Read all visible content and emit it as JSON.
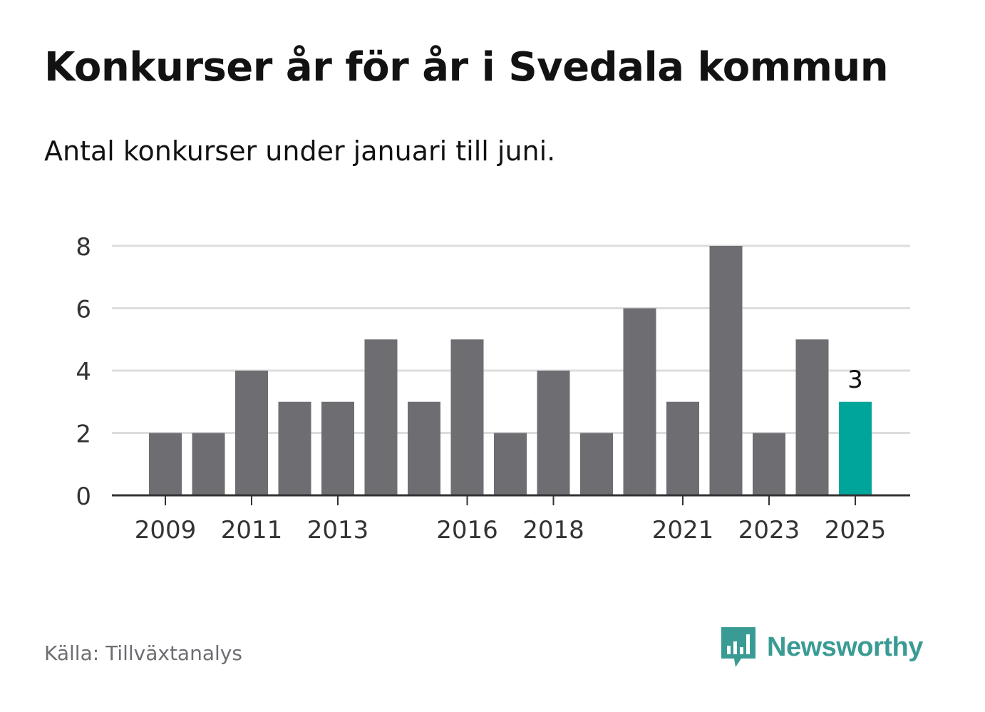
{
  "title": "Konkurser år för år i Svedala kommun",
  "subtitle": "Antal konkurser under januari till juni.",
  "source": "Källa: Tillväxtanalys",
  "logo": {
    "text": "Newsworthy",
    "icon": "newsworthy-bar-chart-icon"
  },
  "colors": {
    "bar": "#6e6d72",
    "highlight": "#00a59a",
    "grid": "#dddddd",
    "axis": "#333333",
    "text": "#333333",
    "brand": "#3a9b94"
  },
  "chart_data": {
    "type": "bar",
    "title": "Konkurser år för år i Svedala kommun",
    "subtitle": "Antal konkurser under januari till juni.",
    "xlabel": "",
    "ylabel": "",
    "categories": [
      "2009",
      "2010",
      "2011",
      "2012",
      "2013",
      "2014",
      "2015",
      "2016",
      "2017",
      "2018",
      "2019",
      "2020",
      "2021",
      "2022",
      "2023",
      "2024",
      "2025"
    ],
    "values": [
      2,
      2,
      4,
      3,
      3,
      5,
      3,
      5,
      2,
      4,
      2,
      6,
      3,
      8,
      2,
      5,
      3
    ],
    "x_tick_labels": [
      "2009",
      "2011",
      "2013",
      "2016",
      "2018",
      "2021",
      "2023",
      "2025"
    ],
    "y_ticks": [
      0,
      2,
      4,
      6,
      8
    ],
    "ylim": [
      0,
      8
    ],
    "highlight": {
      "category": "2025",
      "label": "3"
    },
    "grid": true,
    "legend": "none"
  }
}
